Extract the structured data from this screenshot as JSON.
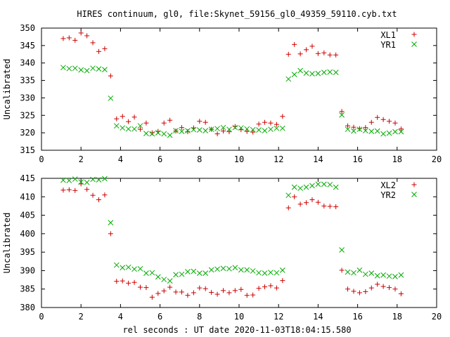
{
  "title": "HIRES continuum, gl0, file:Skynet_59156_gl0_49359_59110.cyb.txt",
  "xlabel": "rel seconds : UT date 2020-11-03T18:04:15.580",
  "chart_data": [
    {
      "type": "scatter",
      "title": "HIRES continuum, gl0, file:Skynet_59156_gl0_49359_59110.cyb.txt",
      "xlabel": "",
      "ylabel": "Uncalibrated",
      "xlim": [
        0,
        20
      ],
      "ylim": [
        315,
        350
      ],
      "xticks": [
        0,
        2,
        4,
        6,
        8,
        10,
        12,
        14,
        16,
        18,
        20
      ],
      "yticks": [
        315,
        320,
        325,
        330,
        335,
        340,
        345,
        350
      ],
      "grid": false,
      "legend": "top-right",
      "series": [
        {
          "name": "XL1",
          "color": "#cc0000",
          "marker": "plus",
          "x": [
            1.1,
            1.4,
            1.7,
            2.0,
            2.3,
            2.6,
            2.9,
            3.2,
            3.5,
            3.8,
            4.1,
            4.4,
            4.7,
            5.0,
            5.3,
            5.6,
            5.9,
            6.2,
            6.5,
            6.8,
            7.1,
            7.4,
            7.7,
            8.0,
            8.3,
            8.6,
            8.9,
            9.2,
            9.5,
            9.8,
            10.1,
            10.4,
            10.7,
            11.0,
            11.3,
            11.6,
            11.9,
            12.2,
            12.5,
            12.8,
            13.1,
            13.4,
            13.7,
            14.0,
            14.3,
            14.6,
            14.9,
            15.2,
            15.5,
            15.8,
            16.1,
            16.4,
            16.7,
            17.0,
            17.3,
            17.6,
            17.9,
            18.2
          ],
          "y": [
            347.0,
            347.2,
            346.5,
            348.6,
            347.8,
            345.8,
            343.3,
            344.1,
            336.3,
            324.0,
            324.7,
            323.2,
            324.5,
            321.0,
            322.8,
            320.0,
            320.4,
            322.8,
            323.6,
            320.5,
            321.5,
            320.3,
            321.4,
            323.3,
            323.0,
            321.0,
            319.7,
            320.5,
            320.3,
            321.8,
            320.9,
            320.4,
            320.2,
            322.5,
            323.0,
            322.8,
            322.4,
            324.7,
            342.5,
            345.3,
            342.6,
            343.8,
            344.8,
            342.7,
            342.9,
            342.3,
            342.3,
            326.1,
            322.0,
            321.6,
            321.2,
            321.5,
            323.0,
            324.4,
            323.8,
            323.3,
            322.8,
            321.1
          ]
        },
        {
          "name": "YR1",
          "color": "#00aa00",
          "marker": "cross",
          "x": [
            1.1,
            1.4,
            1.7,
            2.0,
            2.3,
            2.6,
            2.9,
            3.2,
            3.5,
            3.8,
            4.1,
            4.4,
            4.7,
            5.0,
            5.3,
            5.6,
            5.9,
            6.2,
            6.5,
            6.8,
            7.1,
            7.4,
            7.7,
            8.0,
            8.3,
            8.6,
            8.9,
            9.2,
            9.5,
            9.8,
            10.1,
            10.4,
            10.7,
            11.0,
            11.3,
            11.6,
            11.9,
            12.2,
            12.5,
            12.8,
            13.1,
            13.4,
            13.7,
            14.0,
            14.3,
            14.6,
            14.9,
            15.2,
            15.5,
            15.8,
            16.1,
            16.4,
            16.7,
            17.0,
            17.3,
            17.6,
            17.9,
            18.2
          ],
          "y": [
            338.7,
            338.4,
            338.5,
            338.0,
            337.8,
            338.5,
            338.3,
            338.1,
            329.9,
            322.0,
            321.4,
            321.1,
            321.1,
            322.0,
            319.8,
            319.7,
            320.0,
            319.7,
            319.3,
            320.6,
            320.4,
            320.6,
            320.9,
            320.8,
            320.6,
            321.0,
            321.2,
            321.5,
            321.0,
            321.5,
            321.4,
            321.1,
            320.9,
            320.8,
            320.6,
            321.0,
            321.3,
            321.3,
            335.4,
            336.7,
            337.8,
            337.1,
            336.9,
            337.0,
            337.3,
            337.4,
            337.3,
            325.1,
            321.0,
            320.5,
            321.0,
            320.6,
            320.4,
            320.5,
            319.7,
            319.9,
            320.3,
            320.3
          ]
        }
      ]
    },
    {
      "type": "scatter",
      "title": "",
      "xlabel": "rel seconds : UT date 2020-11-03T18:04:15.580",
      "ylabel": "Uncalibrated",
      "xlim": [
        0,
        20
      ],
      "ylim": [
        380,
        415
      ],
      "xticks": [
        0,
        2,
        4,
        6,
        8,
        10,
        12,
        14,
        16,
        18,
        20
      ],
      "yticks": [
        380,
        385,
        390,
        395,
        400,
        405,
        410,
        415
      ],
      "grid": false,
      "legend": "top-right",
      "series": [
        {
          "name": "XL2",
          "color": "#cc0000",
          "marker": "plus",
          "x": [
            1.1,
            1.4,
            1.7,
            2.0,
            2.3,
            2.6,
            2.9,
            3.2,
            3.5,
            3.8,
            4.1,
            4.4,
            4.7,
            5.0,
            5.3,
            5.6,
            5.9,
            6.2,
            6.5,
            6.8,
            7.1,
            7.4,
            7.7,
            8.0,
            8.3,
            8.6,
            8.9,
            9.2,
            9.5,
            9.8,
            10.1,
            10.4,
            10.7,
            11.0,
            11.3,
            11.6,
            11.9,
            12.2,
            12.5,
            12.8,
            13.1,
            13.4,
            13.7,
            14.0,
            14.3,
            14.6,
            14.9,
            15.2,
            15.5,
            15.8,
            16.1,
            16.4,
            16.7,
            17.0,
            17.3,
            17.6,
            17.9,
            18.2
          ],
          "y": [
            411.8,
            411.9,
            411.7,
            413.5,
            412.0,
            410.4,
            409.2,
            410.5,
            400.0,
            387.1,
            387.2,
            386.6,
            386.8,
            385.5,
            385.4,
            382.8,
            383.8,
            384.5,
            385.5,
            384.2,
            384.2,
            383.3,
            384.0,
            385.3,
            385.1,
            384.1,
            383.6,
            384.6,
            384.0,
            384.6,
            384.9,
            383.3,
            383.4,
            385.2,
            385.6,
            385.9,
            385.3,
            387.3,
            407.0,
            410.0,
            408.0,
            408.4,
            409.2,
            408.5,
            407.5,
            407.4,
            407.3,
            390.1,
            385.0,
            384.4,
            384.0,
            384.3,
            385.3,
            386.3,
            385.7,
            385.4,
            385.0,
            383.7
          ]
        },
        {
          "name": "YR2",
          "color": "#00aa00",
          "marker": "cross",
          "x": [
            1.1,
            1.4,
            1.7,
            2.0,
            2.3,
            2.6,
            2.9,
            3.2,
            3.5,
            3.8,
            4.1,
            4.4,
            4.7,
            5.0,
            5.3,
            5.6,
            5.9,
            6.2,
            6.5,
            6.8,
            7.1,
            7.4,
            7.7,
            8.0,
            8.3,
            8.6,
            8.9,
            9.2,
            9.5,
            9.8,
            10.1,
            10.4,
            10.7,
            11.0,
            11.3,
            11.6,
            11.9,
            12.2,
            12.5,
            12.8,
            13.1,
            13.4,
            13.7,
            14.0,
            14.3,
            14.6,
            14.9,
            15.2,
            15.5,
            15.8,
            16.1,
            16.4,
            16.7,
            17.0,
            17.3,
            17.6,
            17.9,
            18.2
          ],
          "y": [
            414.5,
            414.4,
            414.8,
            414.0,
            413.9,
            414.7,
            414.6,
            414.9,
            403.0,
            391.5,
            390.8,
            390.9,
            390.4,
            390.5,
            389.3,
            389.4,
            388.3,
            387.6,
            387.2,
            388.9,
            389.0,
            389.7,
            389.8,
            389.3,
            389.3,
            390.2,
            390.4,
            390.6,
            390.5,
            390.8,
            390.2,
            390.2,
            389.9,
            389.4,
            389.3,
            389.5,
            389.4,
            390.1,
            410.4,
            412.6,
            412.3,
            412.6,
            413.0,
            413.4,
            413.4,
            413.3,
            412.6,
            395.6,
            389.6,
            389.4,
            390.1,
            389.0,
            389.3,
            388.6,
            388.8,
            388.5,
            388.4,
            388.8
          ]
        }
      ]
    }
  ]
}
